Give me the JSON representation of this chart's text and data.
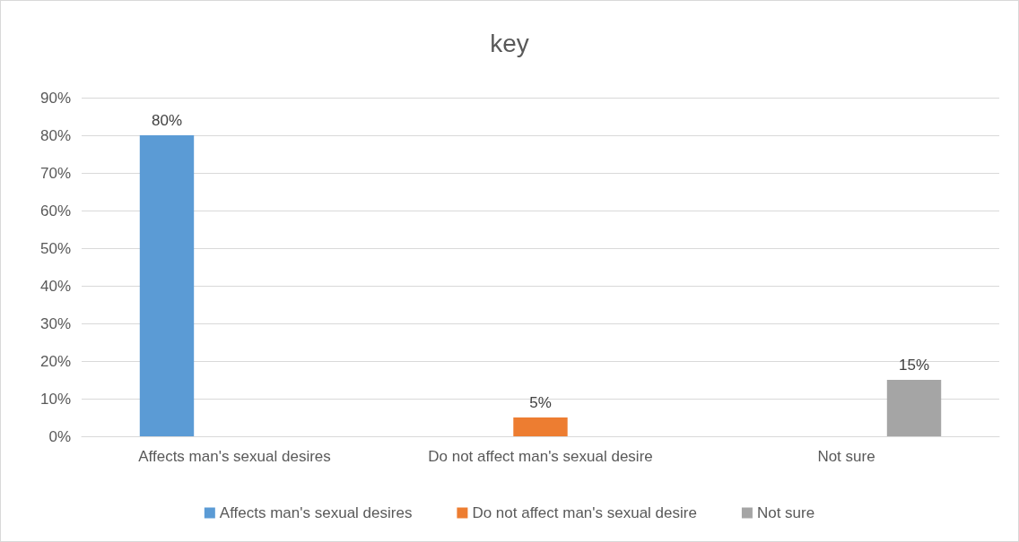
{
  "chart_data": {
    "type": "bar",
    "title": "key",
    "categories": [
      "Affects man's sexual desires",
      "Do not affect man's sexual desire",
      "Not sure"
    ],
    "series": [
      {
        "name": "Affects man's sexual desires",
        "color": "#5b9bd5",
        "values": [
          80,
          null,
          null
        ],
        "value_labels": [
          "80%",
          null,
          null
        ]
      },
      {
        "name": "Do not affect man's sexual desire",
        "color": "#ed7d31",
        "values": [
          null,
          5,
          null
        ],
        "value_labels": [
          null,
          "5%",
          null
        ]
      },
      {
        "name": "Not sure",
        "color": "#a5a5a5",
        "values": [
          null,
          null,
          15
        ],
        "value_labels": [
          null,
          null,
          "15%"
        ]
      }
    ],
    "ylim": [
      0,
      90
    ],
    "yticks": [
      {
        "value": 0,
        "label": "0%"
      },
      {
        "value": 10,
        "label": "10%"
      },
      {
        "value": 20,
        "label": "20%"
      },
      {
        "value": 30,
        "label": "30%"
      },
      {
        "value": 40,
        "label": "40%"
      },
      {
        "value": 50,
        "label": "50%"
      },
      {
        "value": 60,
        "label": "60%"
      },
      {
        "value": 70,
        "label": "70%"
      },
      {
        "value": 80,
        "label": "80%"
      },
      {
        "value": 90,
        "label": "90%"
      }
    ],
    "grid": "y",
    "legend": "bottom"
  }
}
